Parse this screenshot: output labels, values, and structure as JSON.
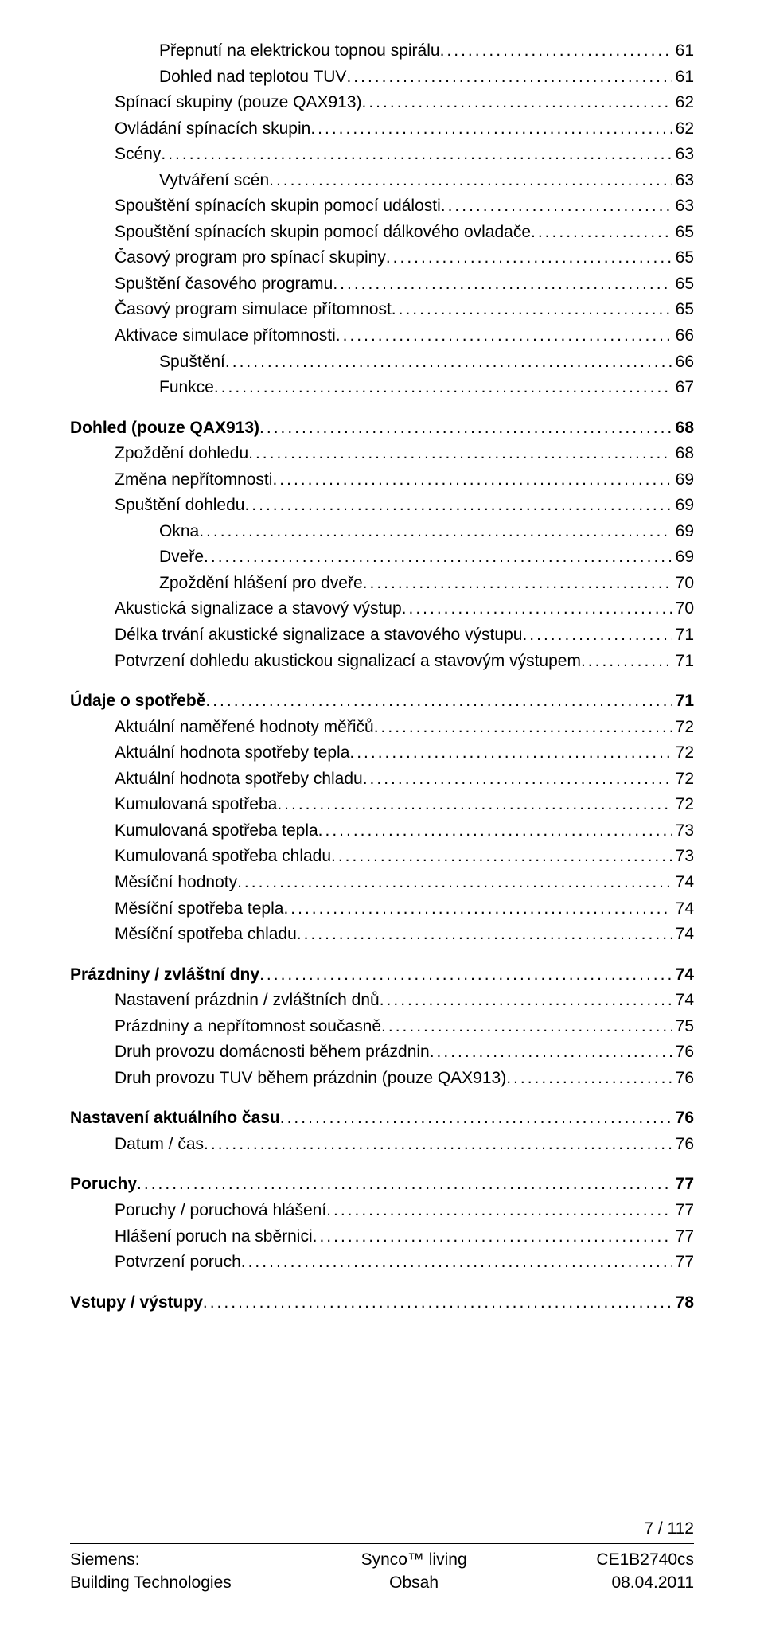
{
  "page_number_label": "7 / 112",
  "footer": {
    "left_line1": "Siemens:",
    "left_line2": "Building Technologies",
    "center_line1": "Synco™ living",
    "center_line2": "Obsah",
    "right_line1": "CE1B2740cs",
    "right_line2": "08.04.2011"
  },
  "toc": [
    {
      "indent": 2,
      "bold": false,
      "label": "Přepnutí na elektrickou topnou spirálu",
      "page": "61"
    },
    {
      "indent": 2,
      "bold": false,
      "label": "Dohled nad teplotou TUV",
      "page": "61"
    },
    {
      "indent": 1,
      "bold": false,
      "label": "Spínací skupiny (pouze QAX913)",
      "page": "62"
    },
    {
      "indent": 1,
      "bold": false,
      "label": "Ovládání spínacích skupin",
      "page": "62"
    },
    {
      "indent": 1,
      "bold": false,
      "label": "Scény",
      "page": "63"
    },
    {
      "indent": 2,
      "bold": false,
      "label": "Vytváření scén",
      "page": "63"
    },
    {
      "indent": 1,
      "bold": false,
      "label": "Spouštění spínacích skupin pomocí události",
      "page": "63"
    },
    {
      "indent": 1,
      "bold": false,
      "label": "Spouštění spínacích skupin pomocí dálkového ovladače",
      "page": "65"
    },
    {
      "indent": 1,
      "bold": false,
      "label": "Časový program pro spínací skupiny",
      "page": "65"
    },
    {
      "indent": 1,
      "bold": false,
      "label": "Spuštění časového programu",
      "page": "65"
    },
    {
      "indent": 1,
      "bold": false,
      "label": "Časový program simulace přítomnost",
      "page": "65"
    },
    {
      "indent": 1,
      "bold": false,
      "label": "Aktivace simulace přítomnosti",
      "page": "66"
    },
    {
      "indent": 2,
      "bold": false,
      "label": "Spuštění",
      "page": "66"
    },
    {
      "indent": 2,
      "bold": false,
      "label": "Funkce",
      "page": "67"
    },
    {
      "gap": true
    },
    {
      "indent": 0,
      "bold": true,
      "label": "Dohled (pouze QAX913)",
      "page": "68"
    },
    {
      "indent": 1,
      "bold": false,
      "label": "Zpoždění dohledu",
      "page": "68"
    },
    {
      "indent": 1,
      "bold": false,
      "label": "Změna nepřítomnosti",
      "page": "69"
    },
    {
      "indent": 1,
      "bold": false,
      "label": "Spuštění dohledu",
      "page": "69"
    },
    {
      "indent": 2,
      "bold": false,
      "label": "Okna",
      "page": "69"
    },
    {
      "indent": 2,
      "bold": false,
      "label": "Dveře",
      "page": "69"
    },
    {
      "indent": 2,
      "bold": false,
      "label": "Zpoždění hlášení pro dveře",
      "page": "70"
    },
    {
      "indent": 1,
      "bold": false,
      "label": "Akustická signalizace a stavový výstup",
      "page": "70"
    },
    {
      "indent": 1,
      "bold": false,
      "label": "Délka trvání akustické signalizace a stavového výstupu",
      "page": "71"
    },
    {
      "indent": 1,
      "bold": false,
      "label": "Potvrzení dohledu akustickou signalizací a stavovým výstupem",
      "page": "71"
    },
    {
      "gap": true
    },
    {
      "indent": 0,
      "bold": true,
      "label": "Údaje o spotřebě",
      "page": "71"
    },
    {
      "indent": 1,
      "bold": false,
      "label": "Aktuální naměřené hodnoty měřičů",
      "page": "72"
    },
    {
      "indent": 1,
      "bold": false,
      "label": "Aktuální hodnota spotřeby tepla",
      "page": "72"
    },
    {
      "indent": 1,
      "bold": false,
      "label": "Aktuální hodnota spotřeby chladu",
      "page": "72"
    },
    {
      "indent": 1,
      "bold": false,
      "label": "Kumulovaná spotřeba",
      "page": "72"
    },
    {
      "indent": 1,
      "bold": false,
      "label": "Kumulovaná spotřeba tepla",
      "page": "73"
    },
    {
      "indent": 1,
      "bold": false,
      "label": "Kumulovaná spotřeba chladu",
      "page": "73"
    },
    {
      "indent": 1,
      "bold": false,
      "label": "Měsíční hodnoty",
      "page": "74"
    },
    {
      "indent": 1,
      "bold": false,
      "label": "Měsíční spotřeba tepla",
      "page": "74"
    },
    {
      "indent": 1,
      "bold": false,
      "label": "Měsíční spotřeba chladu",
      "page": "74"
    },
    {
      "gap": true
    },
    {
      "indent": 0,
      "bold": true,
      "label": "Prázdniny / zvláštní dny",
      "page": "74"
    },
    {
      "indent": 1,
      "bold": false,
      "label": "Nastavení prázdnin / zvláštních dnů",
      "page": "74"
    },
    {
      "indent": 1,
      "bold": false,
      "label": "Prázdniny a nepřítomnost současně",
      "page": "75"
    },
    {
      "indent": 1,
      "bold": false,
      "label": "Druh provozu domácnosti během prázdnin",
      "page": "76"
    },
    {
      "indent": 1,
      "bold": false,
      "label": "Druh provozu TUV během prázdnin (pouze QAX913)",
      "page": "76"
    },
    {
      "gap": true
    },
    {
      "indent": 0,
      "bold": true,
      "label": "Nastavení aktuálního času",
      "page": "76"
    },
    {
      "indent": 1,
      "bold": false,
      "label": "Datum / čas",
      "page": "76"
    },
    {
      "gap": true
    },
    {
      "indent": 0,
      "bold": true,
      "label": "Poruchy",
      "page": "77"
    },
    {
      "indent": 1,
      "bold": false,
      "label": "Poruchy / poruchová hlášení",
      "page": "77"
    },
    {
      "indent": 1,
      "bold": false,
      "label": "Hlášení poruch na sběrnici",
      "page": "77"
    },
    {
      "indent": 1,
      "bold": false,
      "label": "Potvrzení poruch",
      "page": "77"
    },
    {
      "gap": true
    },
    {
      "indent": 0,
      "bold": true,
      "label": "Vstupy / výstupy",
      "page": "78"
    }
  ]
}
